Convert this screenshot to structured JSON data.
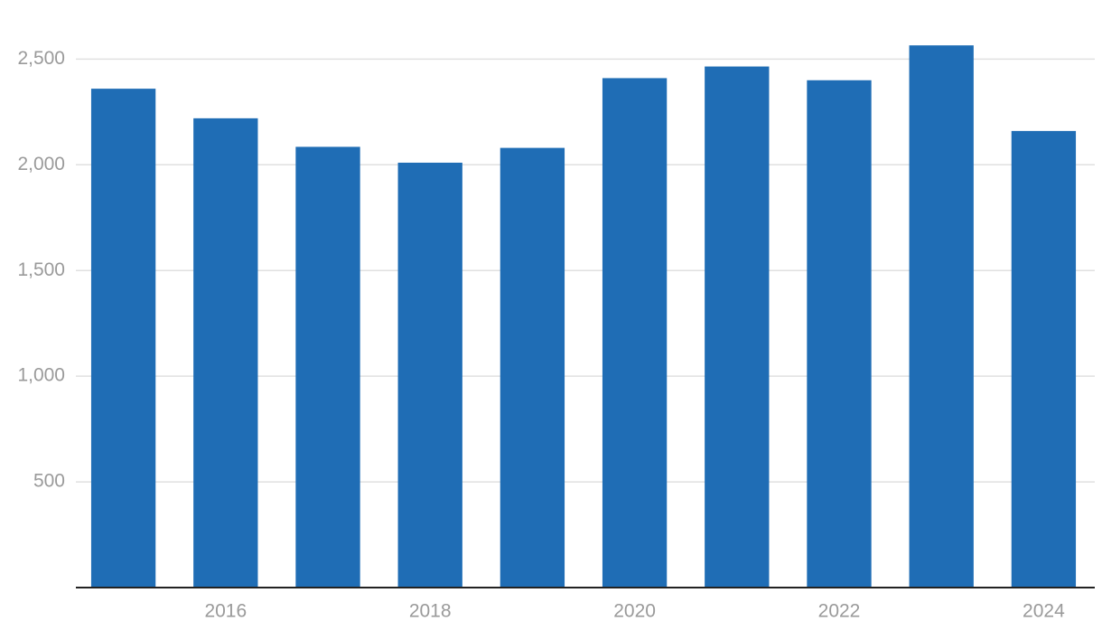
{
  "chart_data": {
    "type": "bar",
    "categories": [
      null,
      "2016",
      null,
      "2018",
      null,
      "2020",
      null,
      "2022",
      null,
      "2024"
    ],
    "values": [
      2360,
      2220,
      2085,
      2010,
      2080,
      2410,
      2465,
      2400,
      2565,
      2160
    ],
    "color": "#1f6db5",
    "ylim": [
      0,
      2600
    ],
    "yticks": [
      500,
      {
        "value": 1000,
        "label": "1,000"
      },
      {
        "value": 1500,
        "label": "1,500"
      },
      {
        "value": 2000,
        "label": "2,000"
      },
      {
        "value": 2500,
        "label": "2,500"
      }
    ],
    "grid": true
  }
}
